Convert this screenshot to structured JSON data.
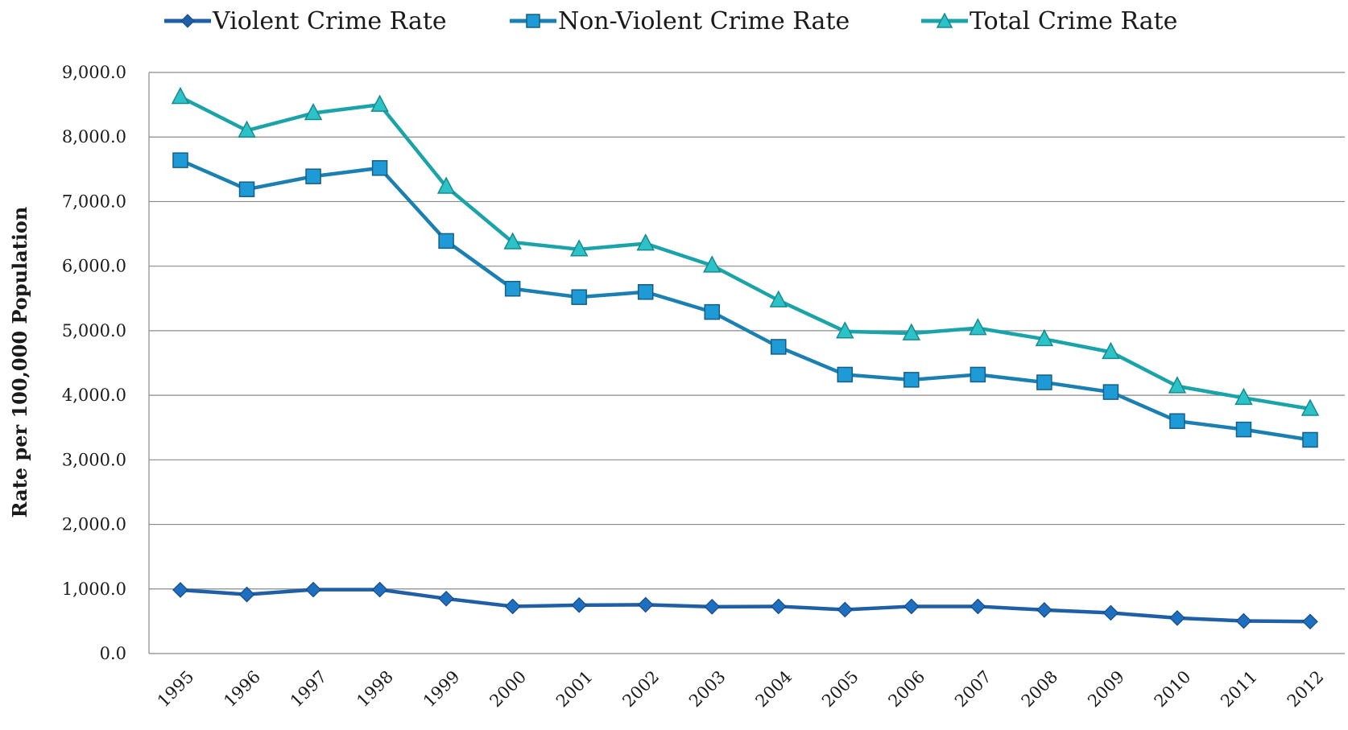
{
  "chart_data": {
    "type": "line",
    "title": "",
    "xlabel": "",
    "ylabel": "Rate per 100,000 Population",
    "ylim": [
      0,
      9000
    ],
    "yticks": [
      "0.0",
      "1,000.0",
      "2,000.0",
      "3,000.0",
      "4,000.0",
      "5,000.0",
      "6,000.0",
      "7,000.0",
      "8,000.0",
      "9,000.0"
    ],
    "grid": true,
    "legend": "top",
    "categories": [
      "1995",
      "1996",
      "1997",
      "1998",
      "1999",
      "2000",
      "2001",
      "2002",
      "2003",
      "2004",
      "2005",
      "2006",
      "2007",
      "2008",
      "2009",
      "2010",
      "2011",
      "2012"
    ],
    "series": [
      {
        "name": "Violent Crime Rate",
        "color": "#1f5fa6",
        "marker": "diamond",
        "values": [
          985,
          915,
          990,
          990,
          850,
          730,
          750,
          755,
          725,
          730,
          680,
          730,
          730,
          675,
          630,
          550,
          505,
          495
        ]
      },
      {
        "name": "Non-Violent Crime Rate",
        "color": "#1a7fb2",
        "marker": "square",
        "values": [
          7640,
          7190,
          7390,
          7520,
          6390,
          5650,
          5520,
          5600,
          5290,
          4750,
          4320,
          4240,
          4320,
          4200,
          4050,
          3600,
          3470,
          3310
        ]
      },
      {
        "name": "Total Crime Rate",
        "color": "#1aa3a8",
        "marker": "triangle",
        "values": [
          8620,
          8100,
          8370,
          8500,
          7230,
          6370,
          6260,
          6350,
          6010,
          5470,
          4990,
          4960,
          5040,
          4870,
          4670,
          4140,
          3960,
          3790
        ]
      }
    ]
  }
}
